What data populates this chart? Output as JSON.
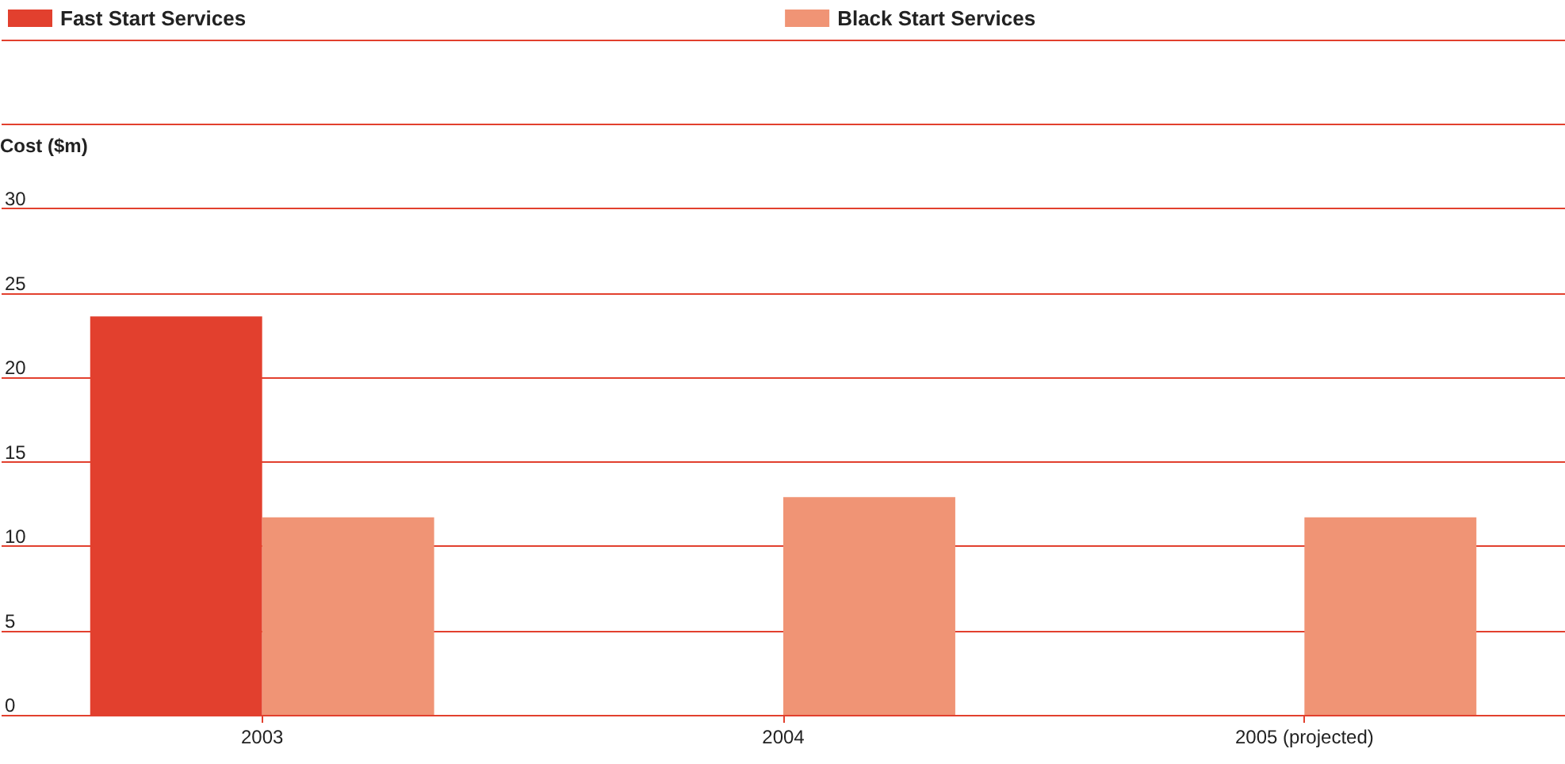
{
  "chart_data": {
    "type": "bar",
    "ylabel": "Cost ($m)",
    "categories": [
      "2003",
      "2004",
      "2005 (projected)"
    ],
    "series": [
      {
        "name": "Fast Start Services",
        "color": "#e2402e",
        "values": [
          23.6,
          null,
          null
        ]
      },
      {
        "name": "Black Start Services",
        "color": "#f09475",
        "values": [
          11.7,
          12.9,
          11.7
        ]
      }
    ],
    "ylim": [
      0,
      40
    ],
    "yticks": [
      0,
      5,
      10,
      15,
      20,
      25,
      30,
      {
        "value": 35,
        "label": null
      },
      {
        "value": 40,
        "label": null
      }
    ],
    "grid": "y",
    "legend": "top"
  }
}
